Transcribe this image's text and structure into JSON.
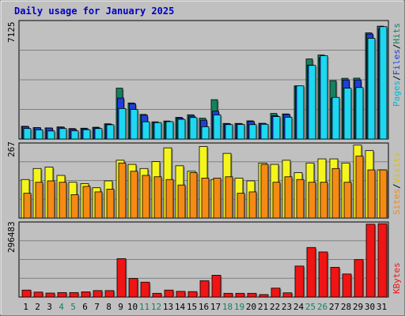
{
  "chart_data": {
    "type": "bar",
    "title": "Daily usage for January 2025",
    "days": [
      "1",
      "2",
      "3",
      "4",
      "5",
      "6",
      "7",
      "8",
      "9",
      "10",
      "11",
      "12",
      "13",
      "14",
      "15",
      "16",
      "17",
      "18",
      "19",
      "20",
      "21",
      "22",
      "23",
      "24",
      "25",
      "26",
      "27",
      "28",
      "29",
      "30",
      "31"
    ],
    "weekend_days": [
      4,
      5,
      11,
      12,
      18,
      19,
      25,
      26
    ],
    "panels": [
      {
        "id": "hits_files_pages",
        "ymax_label": "7125",
        "ymax": 7125,
        "legend": [
          "Pages",
          "/",
          "Files",
          "/",
          "Hits"
        ],
        "series": [
          {
            "name": "Hits",
            "color": "#158060",
            "values": [
              780,
              700,
              680,
              740,
              640,
              660,
              720,
              930,
              3100,
              2200,
              1500,
              1050,
              1100,
              1320,
              1480,
              1270,
              2400,
              950,
              950,
              1110,
              960,
              1560,
              1530,
              3240,
              4880,
              5120,
              3560,
              3700,
              3710,
              6470,
              6880
            ]
          },
          {
            "name": "Files",
            "color": "#1f3fd8",
            "values": [
              760,
              690,
              670,
              720,
              600,
              620,
              680,
              900,
              2500,
              2150,
              1450,
              1000,
              1050,
              1280,
              1400,
              1150,
              1700,
              930,
              930,
              1070,
              950,
              1420,
              1500,
              3200,
              4500,
              4950,
              2490,
              3600,
              3600,
              6400,
              6700
            ]
          },
          {
            "name": "Pages",
            "color": "#1ed7f0",
            "values": [
              640,
              560,
              490,
              640,
              500,
              570,
              640,
              870,
              1860,
              1800,
              1050,
              1000,
              1060,
              1200,
              1310,
              750,
              1470,
              880,
              890,
              880,
              900,
              1370,
              1330,
              3240,
              4490,
              5080,
              2540,
              3100,
              3140,
              6140,
              6850
            ]
          }
        ]
      },
      {
        "id": "visits_sites",
        "ymax_label": "267",
        "ymax": 267,
        "legend": [
          "Sites",
          "/",
          "Visits"
        ],
        "series": [
          {
            "name": "Visits",
            "color": "#f5f51e",
            "values": [
              140,
              180,
              185,
              155,
              130,
              125,
              110,
              135,
              210,
              195,
              180,
              205,
              255,
              190,
              170,
              260,
              140,
              235,
              145,
              135,
              200,
              195,
              210,
              165,
              200,
              215,
              215,
              200,
              265,
              245,
              175
            ]
          },
          {
            "name": "Sites",
            "color": "#f58a14",
            "values": [
              90,
              130,
              135,
              130,
              85,
              115,
              95,
              105,
              200,
              170,
              155,
              150,
              140,
              120,
              165,
              145,
              145,
              150,
              90,
              95,
              195,
              130,
              150,
              140,
              130,
              130,
              180,
              130,
              225,
              175,
              175
            ]
          }
        ]
      },
      {
        "id": "kbytes",
        "ymax_label": "296483",
        "ymax": 296483,
        "legend": [
          "KBytes"
        ],
        "series": [
          {
            "name": "KBytes",
            "color": "#f01414",
            "values": [
              28000,
              20000,
              16000,
              18000,
              18000,
              21000,
              26000,
              26000,
              155000,
              75000,
              60000,
              15000,
              28000,
              23000,
              22000,
              66000,
              88000,
              15000,
              15000,
              15000,
              10000,
              36000,
              17000,
              125000,
              200000,
              182000,
              120000,
              93000,
              151000,
              294000,
              296000
            ]
          }
        ]
      }
    ]
  }
}
